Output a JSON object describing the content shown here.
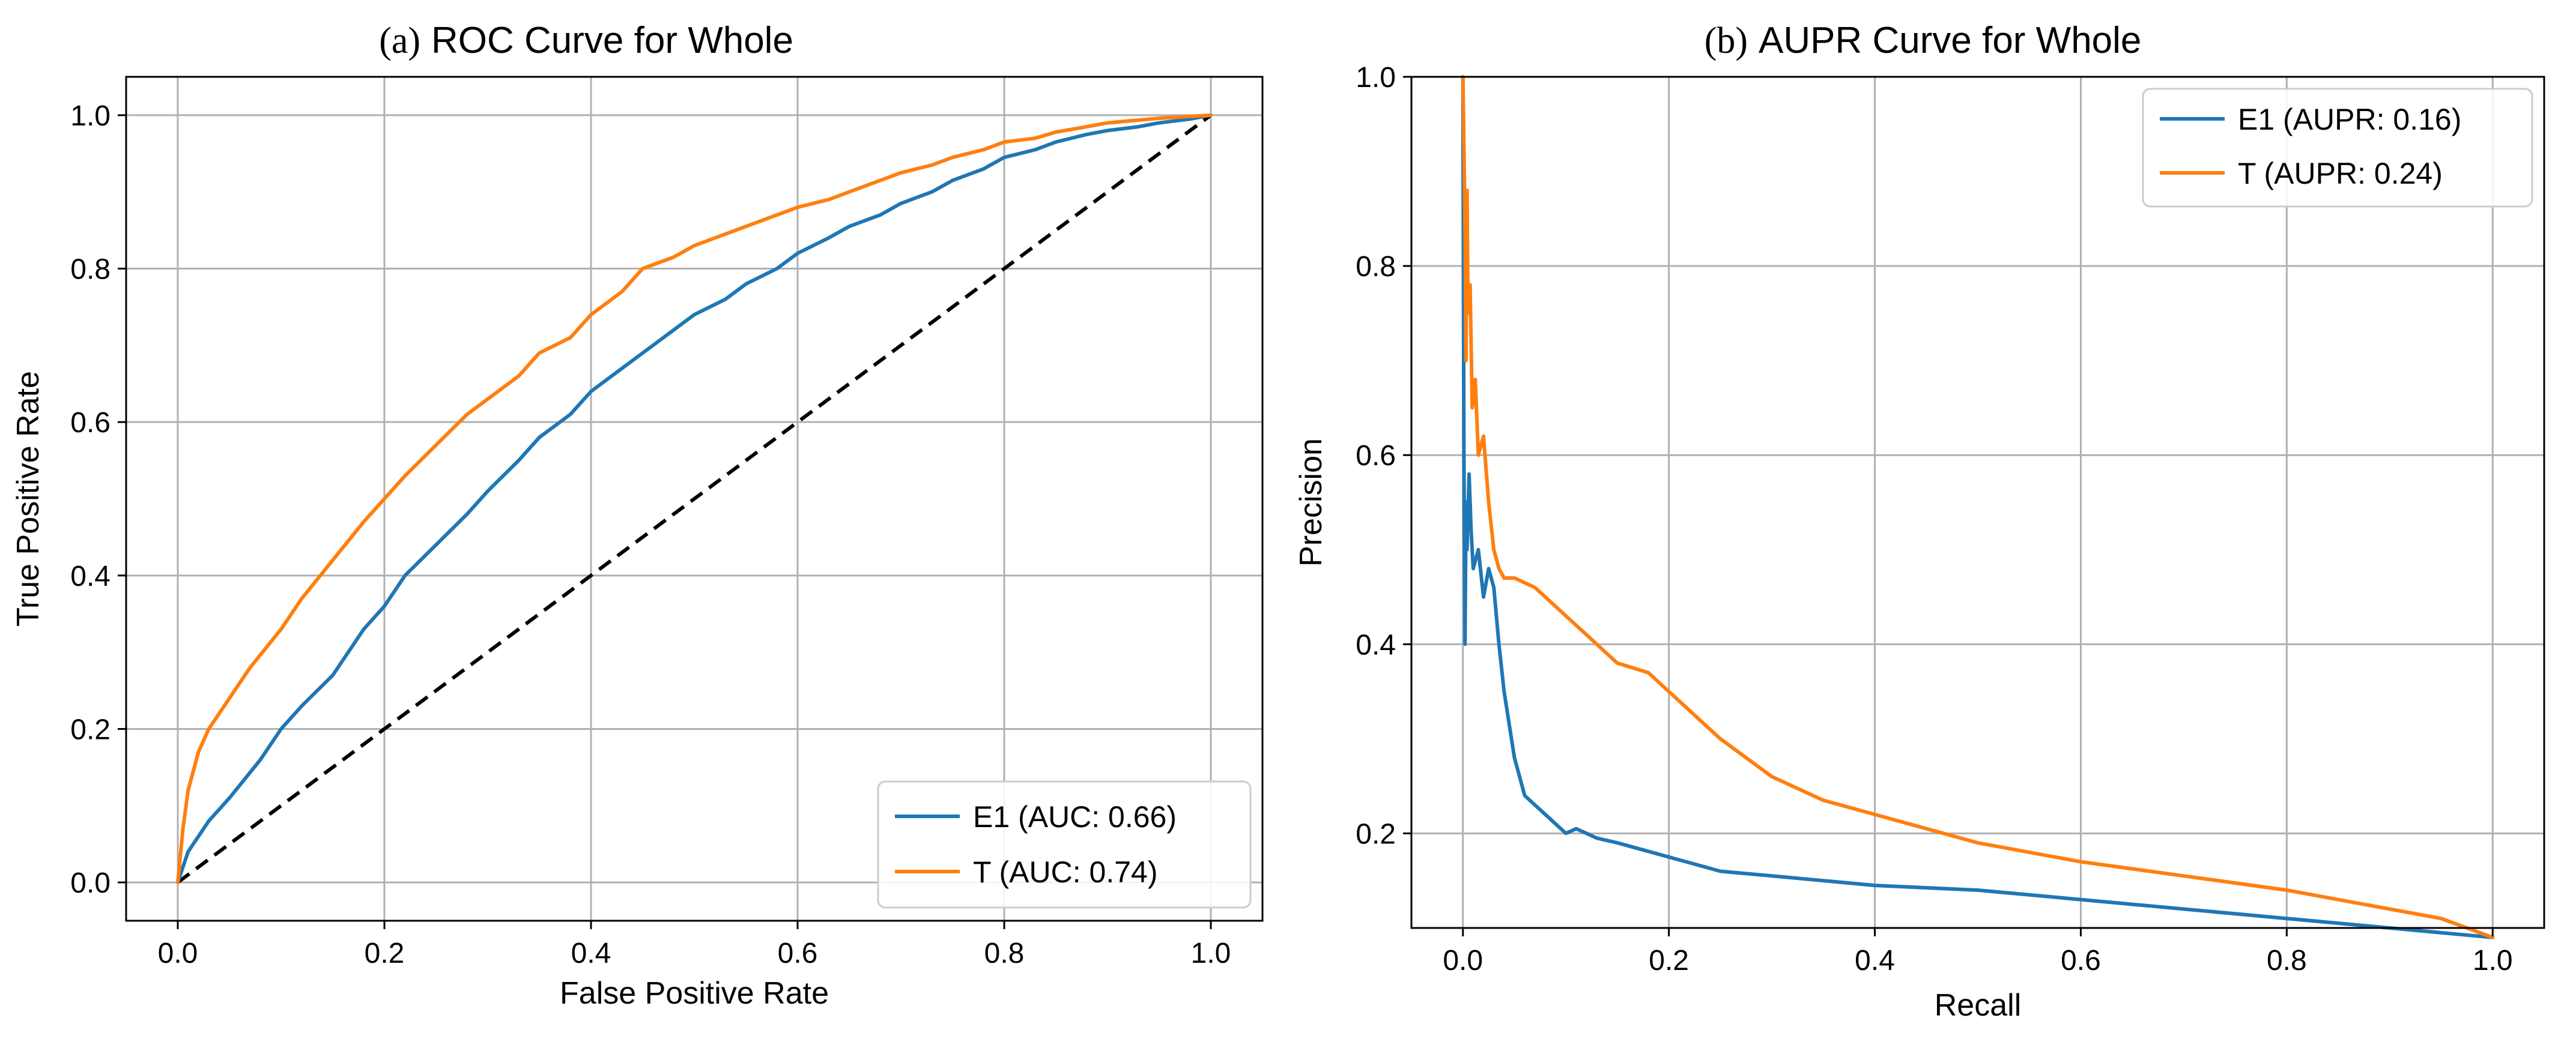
{
  "chart_data": [
    {
      "type": "line",
      "prefix": "(a)",
      "title": "ROC Curve for Whole",
      "xlabel": "False Positive Rate",
      "ylabel": "True Positive Rate",
      "xlim": [
        -0.05,
        1.05
      ],
      "ylim": [
        -0.05,
        1.05
      ],
      "xticks": [
        0.0,
        0.2,
        0.4,
        0.6,
        0.8,
        1.0
      ],
      "yticks": [
        0.0,
        0.2,
        0.4,
        0.6,
        0.8,
        1.0
      ],
      "xtick_labels": [
        "0.0",
        "0.2",
        "0.4",
        "0.6",
        "0.8",
        "1.0"
      ],
      "ytick_labels": [
        "0.0",
        "0.2",
        "0.4",
        "0.6",
        "0.8",
        "1.0"
      ],
      "grid": true,
      "legend_position": "lower-right",
      "reference_line": {
        "x": [
          0,
          1
        ],
        "y": [
          0,
          1
        ],
        "style": "dashed",
        "color": "#000000"
      },
      "series": [
        {
          "name": "E1 (AUC: 0.66)",
          "color": "#1f77b4",
          "x": [
            0.0,
            0.01,
            0.02,
            0.03,
            0.05,
            0.08,
            0.1,
            0.12,
            0.15,
            0.18,
            0.2,
            0.22,
            0.25,
            0.28,
            0.3,
            0.33,
            0.35,
            0.38,
            0.4,
            0.43,
            0.45,
            0.48,
            0.5,
            0.53,
            0.55,
            0.58,
            0.6,
            0.63,
            0.65,
            0.68,
            0.7,
            0.73,
            0.75,
            0.78,
            0.8,
            0.83,
            0.85,
            0.88,
            0.9,
            0.93,
            0.95,
            0.98,
            1.0
          ],
          "y": [
            0.0,
            0.04,
            0.06,
            0.08,
            0.11,
            0.16,
            0.2,
            0.23,
            0.27,
            0.33,
            0.36,
            0.4,
            0.44,
            0.48,
            0.51,
            0.55,
            0.58,
            0.61,
            0.64,
            0.67,
            0.69,
            0.72,
            0.74,
            0.76,
            0.78,
            0.8,
            0.82,
            0.84,
            0.855,
            0.87,
            0.885,
            0.9,
            0.915,
            0.93,
            0.945,
            0.955,
            0.965,
            0.975,
            0.98,
            0.985,
            0.99,
            0.995,
            1.0
          ]
        },
        {
          "name": "T (AUC: 0.74)",
          "color": "#ff7f0e",
          "x": [
            0.0,
            0.005,
            0.01,
            0.02,
            0.03,
            0.05,
            0.07,
            0.1,
            0.12,
            0.15,
            0.18,
            0.2,
            0.22,
            0.25,
            0.28,
            0.3,
            0.33,
            0.35,
            0.38,
            0.4,
            0.43,
            0.45,
            0.48,
            0.5,
            0.53,
            0.55,
            0.58,
            0.6,
            0.63,
            0.65,
            0.68,
            0.7,
            0.73,
            0.75,
            0.78,
            0.8,
            0.83,
            0.85,
            0.88,
            0.9,
            0.95,
            1.0
          ],
          "y": [
            0.0,
            0.07,
            0.12,
            0.17,
            0.2,
            0.24,
            0.28,
            0.33,
            0.37,
            0.42,
            0.47,
            0.5,
            0.53,
            0.57,
            0.61,
            0.63,
            0.66,
            0.69,
            0.71,
            0.74,
            0.77,
            0.8,
            0.815,
            0.83,
            0.845,
            0.855,
            0.87,
            0.88,
            0.89,
            0.9,
            0.915,
            0.925,
            0.935,
            0.945,
            0.955,
            0.965,
            0.97,
            0.978,
            0.985,
            0.99,
            0.996,
            1.0
          ]
        }
      ]
    },
    {
      "type": "line",
      "prefix": "(b)",
      "title": "AUPR Curve for Whole",
      "xlabel": "Recall",
      "ylabel": "Precision",
      "xlim": [
        -0.05,
        1.05
      ],
      "ylim": [
        0.1,
        1.0
      ],
      "xticks": [
        0.0,
        0.2,
        0.4,
        0.6,
        0.8,
        1.0
      ],
      "yticks": [
        0.2,
        0.4,
        0.6,
        0.8,
        1.0
      ],
      "xtick_labels": [
        "0.0",
        "0.2",
        "0.4",
        "0.6",
        "0.8",
        "1.0"
      ],
      "ytick_labels": [
        "0.2",
        "0.4",
        "0.6",
        "0.8",
        "1.0"
      ],
      "grid": true,
      "legend_position": "upper-right",
      "series": [
        {
          "name": "E1 (AUPR: 0.16)",
          "color": "#1f77b4",
          "x": [
            0.0,
            0.001,
            0.002,
            0.003,
            0.004,
            0.006,
            0.008,
            0.01,
            0.015,
            0.02,
            0.025,
            0.03,
            0.035,
            0.04,
            0.05,
            0.06,
            0.07,
            0.08,
            0.1,
            0.11,
            0.12,
            0.13,
            0.15,
            0.2,
            0.25,
            0.3,
            0.35,
            0.4,
            0.5,
            0.6,
            0.7,
            0.8,
            0.9,
            1.0
          ],
          "y": [
            1.0,
            0.6,
            0.4,
            0.55,
            0.5,
            0.58,
            0.52,
            0.48,
            0.5,
            0.45,
            0.48,
            0.46,
            0.4,
            0.35,
            0.28,
            0.24,
            0.23,
            0.22,
            0.2,
            0.205,
            0.2,
            0.195,
            0.19,
            0.175,
            0.16,
            0.155,
            0.15,
            0.145,
            0.14,
            0.13,
            0.12,
            0.11,
            0.1,
            0.09
          ]
        },
        {
          "name": "T (AUPR: 0.24)",
          "color": "#ff7f0e",
          "x": [
            0.0,
            0.002,
            0.003,
            0.004,
            0.005,
            0.007,
            0.009,
            0.012,
            0.015,
            0.02,
            0.025,
            0.03,
            0.035,
            0.04,
            0.05,
            0.07,
            0.09,
            0.12,
            0.15,
            0.18,
            0.2,
            0.25,
            0.3,
            0.35,
            0.4,
            0.5,
            0.6,
            0.7,
            0.8,
            0.9,
            0.95,
            1.0
          ],
          "y": [
            1.0,
            0.85,
            0.7,
            0.88,
            0.75,
            0.78,
            0.65,
            0.68,
            0.6,
            0.62,
            0.55,
            0.5,
            0.48,
            0.47,
            0.47,
            0.46,
            0.44,
            0.41,
            0.38,
            0.37,
            0.35,
            0.3,
            0.26,
            0.235,
            0.22,
            0.19,
            0.17,
            0.155,
            0.14,
            0.12,
            0.11,
            0.09
          ]
        }
      ]
    }
  ]
}
